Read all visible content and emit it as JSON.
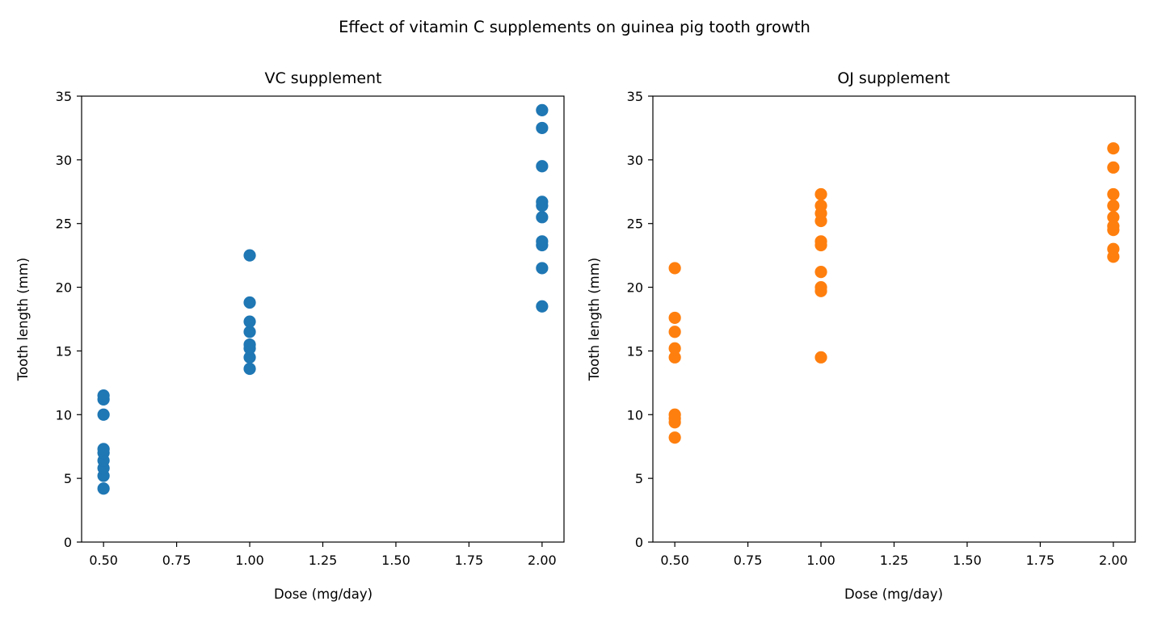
{
  "suptitle": "Effect of vitamin C supplements on guinea pig tooth growth",
  "chart_data": [
    {
      "type": "scatter",
      "title": "VC supplement",
      "xlabel": "Dose (mg/day)",
      "ylabel": "Tooth length (mm)",
      "xlim": [
        0.425,
        2.075
      ],
      "ylim": [
        0,
        35
      ],
      "xticks": [
        "0.50",
        "0.75",
        "1.00",
        "1.25",
        "1.50",
        "1.75",
        "2.00"
      ],
      "yticks": [
        "0",
        "5",
        "10",
        "15",
        "20",
        "25",
        "30",
        "35"
      ],
      "grid": false,
      "color": "#1f77b4",
      "points": [
        [
          0.5,
          4.2
        ],
        [
          0.5,
          5.2
        ],
        [
          0.5,
          5.8
        ],
        [
          0.5,
          6.4
        ],
        [
          0.5,
          7.0
        ],
        [
          0.5,
          7.3
        ],
        [
          0.5,
          10.0
        ],
        [
          0.5,
          11.2
        ],
        [
          0.5,
          11.5
        ],
        [
          1.0,
          13.6
        ],
        [
          1.0,
          14.5
        ],
        [
          1.0,
          15.2
        ],
        [
          1.0,
          15.5
        ],
        [
          1.0,
          16.5
        ],
        [
          1.0,
          17.3
        ],
        [
          1.0,
          18.8
        ],
        [
          1.0,
          22.5
        ],
        [
          2.0,
          18.5
        ],
        [
          2.0,
          21.5
        ],
        [
          2.0,
          23.3
        ],
        [
          2.0,
          23.6
        ],
        [
          2.0,
          25.5
        ],
        [
          2.0,
          26.4
        ],
        [
          2.0,
          26.7
        ],
        [
          2.0,
          29.5
        ],
        [
          2.0,
          32.5
        ],
        [
          2.0,
          33.9
        ]
      ]
    },
    {
      "type": "scatter",
      "title": "OJ supplement",
      "xlabel": "Dose (mg/day)",
      "ylabel": "Tooth length (mm)",
      "xlim": [
        0.425,
        2.075
      ],
      "ylim": [
        0,
        35
      ],
      "xticks": [
        "0.50",
        "0.75",
        "1.00",
        "1.25",
        "1.50",
        "1.75",
        "2.00"
      ],
      "yticks": [
        "0",
        "5",
        "10",
        "15",
        "20",
        "25",
        "30",
        "35"
      ],
      "grid": false,
      "color": "#ff7f0e",
      "points": [
        [
          0.5,
          8.2
        ],
        [
          0.5,
          9.4
        ],
        [
          0.5,
          9.7
        ],
        [
          0.5,
          10.0
        ],
        [
          0.5,
          14.5
        ],
        [
          0.5,
          15.2
        ],
        [
          0.5,
          16.5
        ],
        [
          0.5,
          17.6
        ],
        [
          0.5,
          21.5
        ],
        [
          1.0,
          14.5
        ],
        [
          1.0,
          19.7
        ],
        [
          1.0,
          20.0
        ],
        [
          1.0,
          21.2
        ],
        [
          1.0,
          23.3
        ],
        [
          1.0,
          23.6
        ],
        [
          1.0,
          25.2
        ],
        [
          1.0,
          25.8
        ],
        [
          1.0,
          26.4
        ],
        [
          1.0,
          27.3
        ],
        [
          2.0,
          22.4
        ],
        [
          2.0,
          23.0
        ],
        [
          2.0,
          24.5
        ],
        [
          2.0,
          24.8
        ],
        [
          2.0,
          25.5
        ],
        [
          2.0,
          26.4
        ],
        [
          2.0,
          27.3
        ],
        [
          2.0,
          29.4
        ],
        [
          2.0,
          30.9
        ]
      ]
    }
  ]
}
